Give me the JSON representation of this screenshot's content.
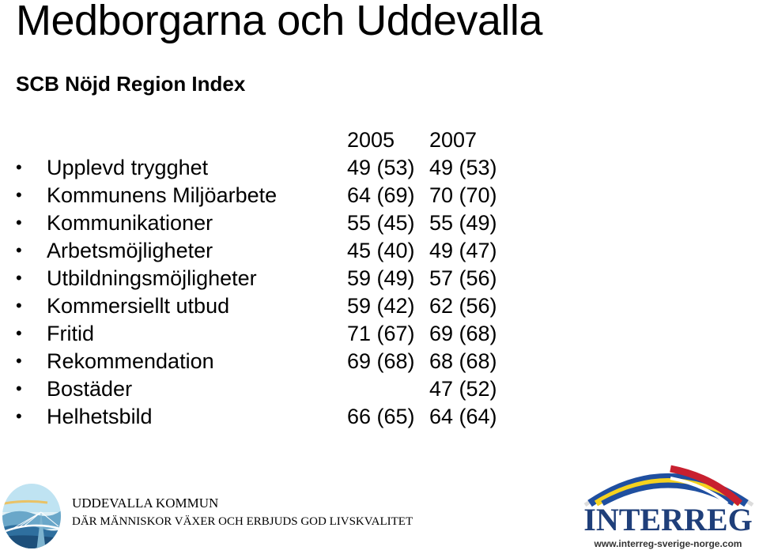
{
  "title": "Medborgarna och Uddevalla",
  "subtitle": "SCB Nöjd Region Index",
  "years": [
    "2005",
    "2007"
  ],
  "rows": [
    {
      "label": "Upplevd trygghet",
      "v2005": "49 (53)",
      "v2007": "49 (53)"
    },
    {
      "label": "Kommunens Miljöarbete",
      "v2005": "64 (69)",
      "v2007": "70 (70)"
    },
    {
      "label": "Kommunikationer",
      "v2005": "55 (45)",
      "v2007": "55 (49)"
    },
    {
      "label": "Arbetsmöjligheter",
      "v2005": "45 (40)",
      "v2007": "49 (47)"
    },
    {
      "label": "Utbildningsmöjligheter",
      "v2005": "59 (49)",
      "v2007": "57 (56)"
    },
    {
      "label": "Kommersiellt utbud",
      "v2005": "59 (42)",
      "v2007": "62 (56)"
    },
    {
      "label": "Fritid",
      "v2005": "71 (67)",
      "v2007": "69 (68)"
    },
    {
      "label": "Rekommendation",
      "v2005": "69 (68)",
      "v2007": "68 (68)"
    },
    {
      "label": "Bostäder",
      "v2005": "",
      "v2007": "47 (52)"
    },
    {
      "label": "Helhetsbild",
      "v2005": "66 (65)",
      "v2007": "64 (64)"
    }
  ],
  "footer": {
    "name": "UDDEVALLA KOMMUN",
    "tagline": "DÄR MÄNNISKOR VÄXER OCH ERBJUDS GOD LIVSKVALITET"
  },
  "interreg": {
    "text": "INTERREG",
    "url": "www.interreg-sverige-norge.com"
  },
  "colors": {
    "blue": "#1f4fa0",
    "yellow": "#f5d21f",
    "red": "#c8202f",
    "arc_gray": "#dcdcdc"
  }
}
